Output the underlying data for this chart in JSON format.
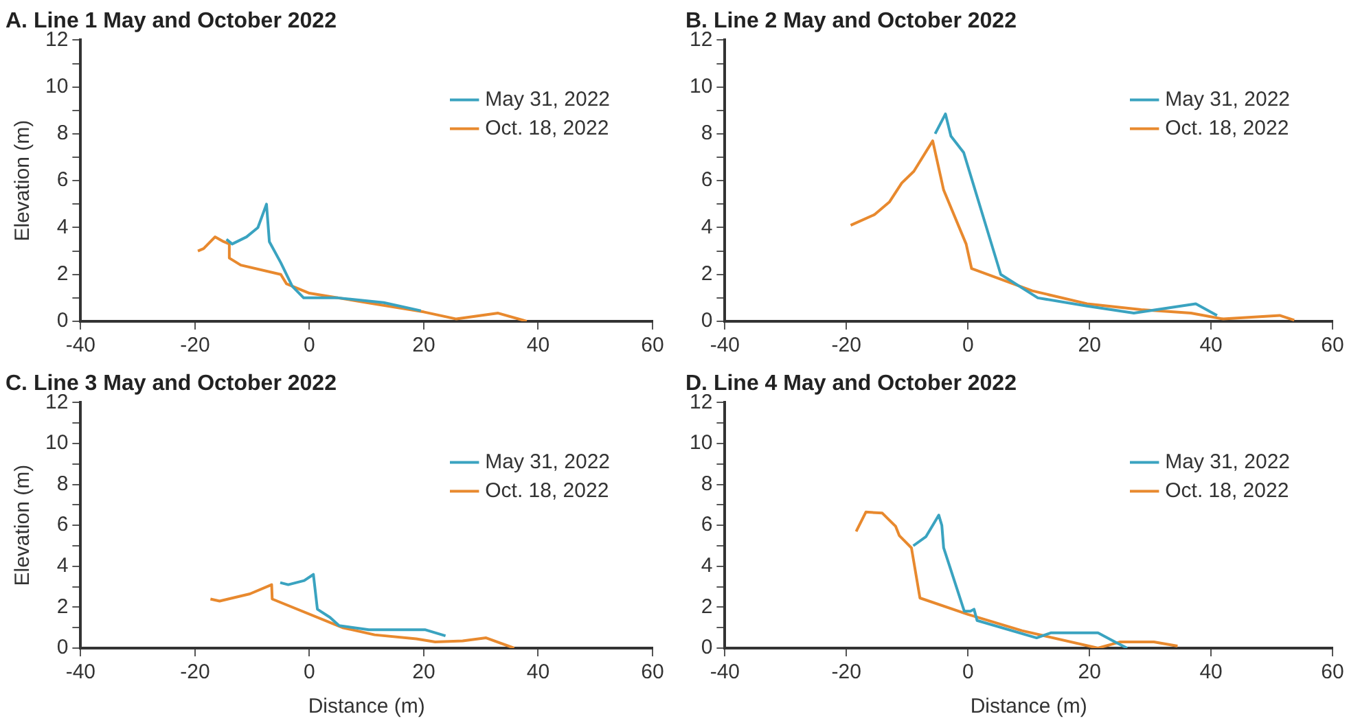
{
  "chart_data": [
    {
      "type": "line",
      "title": "A. Line 1 May and October 2022",
      "ylabel": "Elevation (m)",
      "legend": "top right",
      "grid": false,
      "marker": "none",
      "line_style": "solid",
      "xlim": [
        -40,
        60
      ],
      "xticks": [
        -40,
        -20,
        0,
        20,
        40,
        60
      ],
      "ylim": [
        0,
        12
      ],
      "yticks": [
        0,
        {
          "value": 1,
          "label": null
        },
        2,
        {
          "value": 3,
          "label": null
        },
        4,
        {
          "value": 5,
          "label": null
        },
        6,
        {
          "value": 7,
          "label": null
        },
        8,
        {
          "value": 9,
          "label": null
        },
        10,
        {
          "value": 11,
          "label": null
        },
        12
      ],
      "series": [
        {
          "name": "May 31, 2022",
          "color": "#3aa3c0",
          "x": [
            -14.5,
            -13.5,
            -11,
            -9,
            -7.5,
            -7,
            -5,
            -3,
            -1,
            5,
            13,
            19.5
          ],
          "values": [
            3.5,
            3.3,
            3.6,
            4,
            5,
            3.4,
            2.5,
            1.5,
            1,
            1,
            0.8,
            0.45
          ]
        },
        {
          "name": "Oct. 18, 2022",
          "color": "#e8892e",
          "x": [
            -19.5,
            -18.5,
            -16.5,
            -15,
            -14,
            -14,
            -12,
            -5,
            -4,
            0,
            10,
            20,
            25.7,
            33,
            38
          ],
          "values": [
            3,
            3.1,
            3.6,
            3.4,
            3.3,
            2.7,
            2.4,
            2,
            1.6,
            1.2,
            0.8,
            0.4,
            0.1,
            0.35,
            0
          ]
        }
      ]
    },
    {
      "type": "line",
      "title": "B. Line 2 May and October 2022",
      "legend": "top right",
      "grid": false,
      "marker": "none",
      "line_style": "solid",
      "xlim": [
        -40,
        60
      ],
      "xticks": [
        -40,
        -20,
        0,
        20,
        40,
        60
      ],
      "ylim": [
        0,
        12
      ],
      "yticks": [
        0,
        {
          "value": 1,
          "label": null
        },
        2,
        {
          "value": 3,
          "label": null
        },
        4,
        {
          "value": 5,
          "label": null
        },
        6,
        {
          "value": 7,
          "label": null
        },
        8,
        {
          "value": 9,
          "label": null
        },
        10,
        {
          "value": 11,
          "label": null
        },
        12
      ],
      "series": [
        {
          "name": "May 31, 2022",
          "color": "#3aa3c0",
          "x": [
            -5.4,
            -3.7,
            -2.8,
            -0.7,
            5.4,
            11.5,
            19.6,
            27.3,
            37.5,
            41
          ],
          "values": [
            8,
            8.85,
            7.9,
            7.2,
            2,
            1,
            0.65,
            0.35,
            0.75,
            0.25
          ]
        },
        {
          "name": "Oct. 18, 2022",
          "color": "#e8892e",
          "x": [
            -19.3,
            -15.4,
            -12.9,
            -10.9,
            -8.9,
            -5.8,
            -4,
            -0.3,
            0.6,
            10.6,
            19.6,
            28.5,
            36.7,
            42,
            51.3,
            53.7
          ],
          "values": [
            4.1,
            4.55,
            5.1,
            5.9,
            6.4,
            7.7,
            5.6,
            3.3,
            2.25,
            1.3,
            0.75,
            0.5,
            0.35,
            0.1,
            0.25,
            0.05
          ]
        }
      ]
    },
    {
      "type": "line",
      "title": "C. Line 3 May and October 2022",
      "xlabel": "Distance (m)",
      "ylabel": "Elevation (m)",
      "legend": "top right",
      "grid": false,
      "marker": "none",
      "line_style": "solid",
      "xlim": [
        -40,
        60
      ],
      "xticks": [
        -40,
        -20,
        0,
        20,
        40,
        60
      ],
      "ylim": [
        0,
        12
      ],
      "yticks": [
        0,
        {
          "value": 1,
          "label": null
        },
        2,
        {
          "value": 3,
          "label": null
        },
        4,
        {
          "value": 5,
          "label": null
        },
        6,
        {
          "value": 7,
          "label": null
        },
        8,
        {
          "value": 9,
          "label": null
        },
        10,
        {
          "value": 11,
          "label": null
        },
        12
      ],
      "series": [
        {
          "name": "May 31, 2022",
          "color": "#3aa3c0",
          "x": [
            -5.1,
            -3.7,
            -0.9,
            0.7,
            1.4,
            3.6,
            5.2,
            10.4,
            20.2,
            23.8
          ],
          "values": [
            3.2,
            3.1,
            3.3,
            3.6,
            1.9,
            1.5,
            1.1,
            0.9,
            0.9,
            0.6
          ]
        },
        {
          "name": "Oct. 18, 2022",
          "color": "#e8892e",
          "x": [
            -17.3,
            -15.7,
            -10.4,
            -6.6,
            -6.5,
            5.8,
            11.4,
            18.7,
            22,
            26.8,
            30.9,
            35.8
          ],
          "values": [
            2.4,
            2.3,
            2.65,
            3.1,
            2.4,
            1,
            0.65,
            0.45,
            0.3,
            0.35,
            0.5,
            0
          ]
        }
      ]
    },
    {
      "type": "line",
      "title": "D. Line 4 May and October 2022",
      "xlabel": "Distance (m)",
      "legend": "top right",
      "grid": false,
      "marker": "none",
      "line_style": "solid",
      "xlim": [
        -40,
        60
      ],
      "xticks": [
        -40,
        -20,
        0,
        20,
        40,
        60
      ],
      "ylim": [
        0,
        12
      ],
      "yticks": [
        0,
        {
          "value": 1,
          "label": null
        },
        2,
        {
          "value": 3,
          "label": null
        },
        4,
        {
          "value": 5,
          "label": null
        },
        6,
        {
          "value": 7,
          "label": null
        },
        8,
        {
          "value": 9,
          "label": null
        },
        10,
        {
          "value": 11,
          "label": null
        },
        12
      ],
      "series": [
        {
          "name": "May 31, 2022",
          "color": "#3aa3c0",
          "x": [
            -9,
            -6.9,
            -4.8,
            -4.3,
            -4,
            -0.6,
            0.4,
            1,
            1.5,
            11.3,
            13.7,
            21.4,
            24.2,
            26.2
          ],
          "values": [
            5,
            5.45,
            6.5,
            6,
            4.9,
            1.8,
            1.8,
            1.9,
            1.35,
            0.5,
            0.75,
            0.75,
            0.3,
            0
          ]
        },
        {
          "name": "Oct. 18, 2022",
          "color": "#e8892e",
          "x": [
            -18.4,
            -16.8,
            -14.1,
            -11.9,
            -11.3,
            -9.3,
            -7.9,
            0,
            8.9,
            21.4,
            25,
            30.6,
            34.5
          ],
          "values": [
            5.7,
            6.65,
            6.6,
            5.95,
            5.5,
            4.9,
            2.45,
            1.65,
            0.85,
            0,
            0.3,
            0.3,
            0.1
          ]
        }
      ]
    }
  ]
}
